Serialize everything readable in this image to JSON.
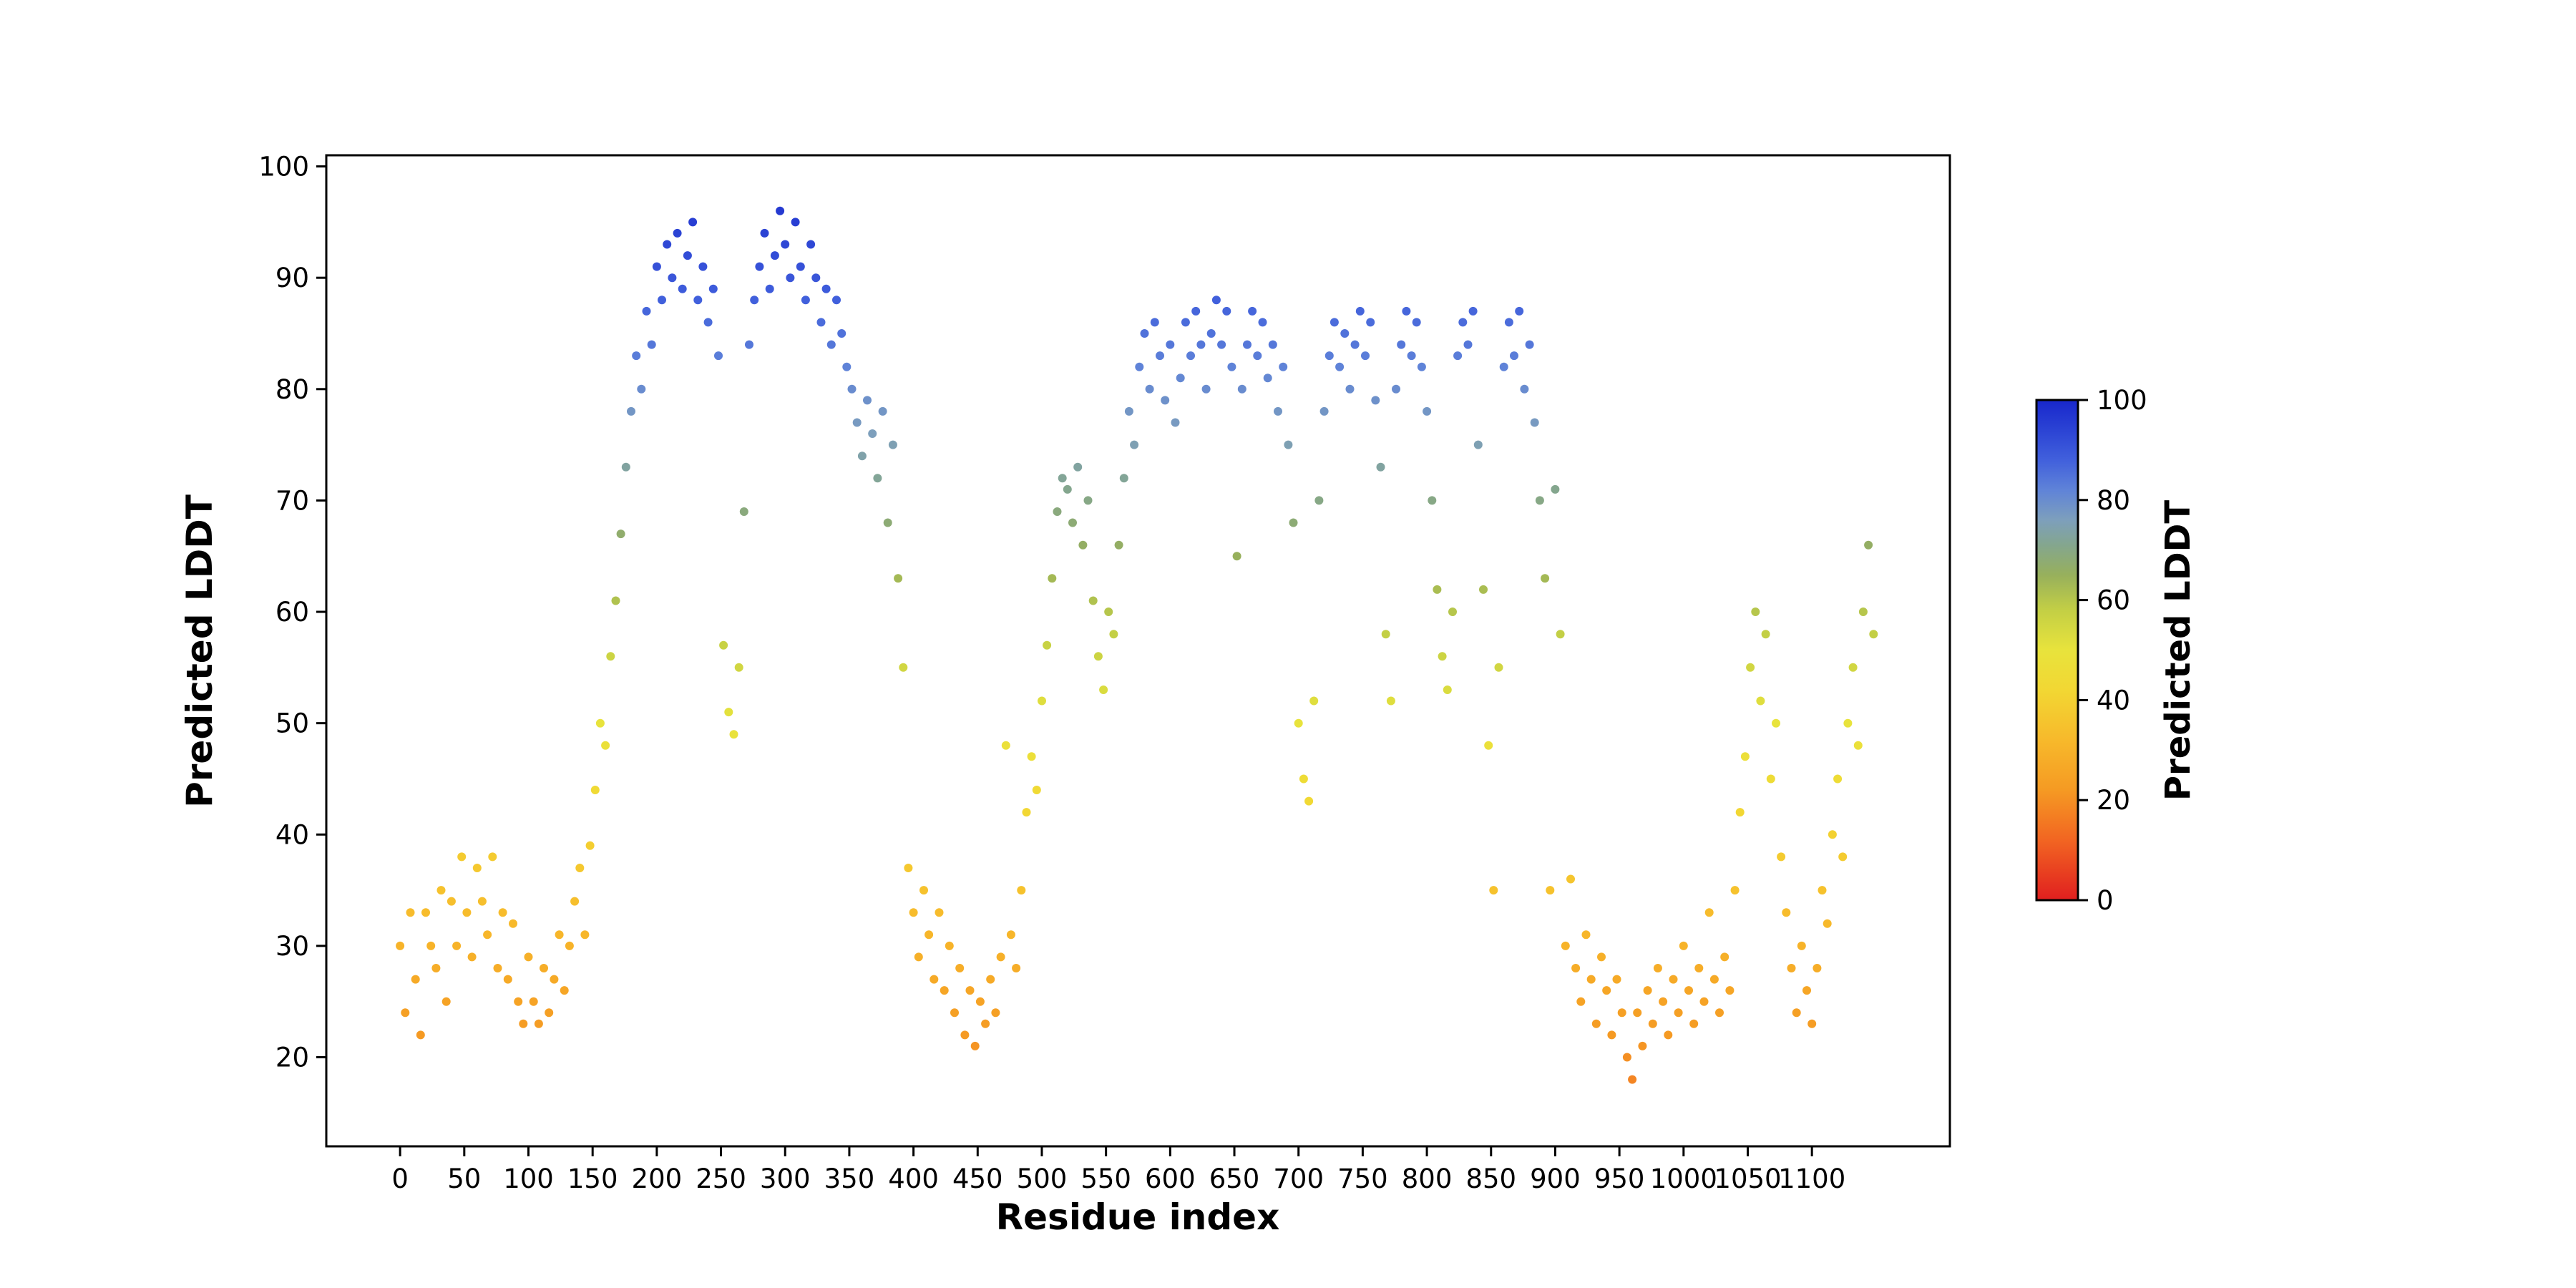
{
  "figure": {
    "background_color": "#ffffff",
    "axis_color": "#000000"
  },
  "chart_data": {
    "type": "scatter",
    "title": "",
    "xlabel": "Residue index",
    "ylabel": "Predicted LDDT",
    "xlim": [
      -57.5,
      1207.5
    ],
    "ylim": [
      12,
      101
    ],
    "grid": false,
    "legend": false,
    "marker_size": 6,
    "x_ticks": [
      0,
      50,
      100,
      150,
      200,
      250,
      300,
      350,
      400,
      450,
      500,
      550,
      600,
      650,
      700,
      750,
      800,
      850,
      900,
      950,
      1000,
      1050,
      1100
    ],
    "y_ticks": [
      20,
      30,
      40,
      50,
      60,
      70,
      80,
      90,
      100
    ],
    "colorbar": {
      "label": "Predicted LDDT",
      "min": 0,
      "max": 100,
      "ticks": [
        0,
        20,
        40,
        60,
        80,
        100
      ]
    },
    "colormap_stops": [
      {
        "t": 0.0,
        "color": "#e01f1f"
      },
      {
        "t": 0.12,
        "color": "#f26522"
      },
      {
        "t": 0.22,
        "color": "#f59a23"
      },
      {
        "t": 0.32,
        "color": "#f7b92b"
      },
      {
        "t": 0.42,
        "color": "#f2d733"
      },
      {
        "t": 0.5,
        "color": "#e8e33c"
      },
      {
        "t": 0.58,
        "color": "#c3cf45"
      },
      {
        "t": 0.65,
        "color": "#97b05c"
      },
      {
        "t": 0.71,
        "color": "#84a68e"
      },
      {
        "t": 0.76,
        "color": "#7d9fbc"
      },
      {
        "t": 0.82,
        "color": "#5f83d8"
      },
      {
        "t": 0.88,
        "color": "#4160dc"
      },
      {
        "t": 0.94,
        "color": "#2b43d4"
      },
      {
        "t": 1.0,
        "color": "#1827cc"
      }
    ],
    "points": [
      [
        0,
        30
      ],
      [
        4,
        24
      ],
      [
        8,
        33
      ],
      [
        12,
        27
      ],
      [
        16,
        22
      ],
      [
        20,
        33
      ],
      [
        24,
        30
      ],
      [
        28,
        28
      ],
      [
        32,
        35
      ],
      [
        36,
        25
      ],
      [
        40,
        34
      ],
      [
        44,
        30
      ],
      [
        48,
        38
      ],
      [
        52,
        33
      ],
      [
        56,
        29
      ],
      [
        60,
        37
      ],
      [
        64,
        34
      ],
      [
        68,
        31
      ],
      [
        72,
        38
      ],
      [
        76,
        28
      ],
      [
        80,
        33
      ],
      [
        84,
        27
      ],
      [
        88,
        32
      ],
      [
        92,
        25
      ],
      [
        96,
        23
      ],
      [
        100,
        29
      ],
      [
        104,
        25
      ],
      [
        108,
        23
      ],
      [
        112,
        28
      ],
      [
        116,
        24
      ],
      [
        120,
        27
      ],
      [
        124,
        31
      ],
      [
        128,
        26
      ],
      [
        132,
        30
      ],
      [
        136,
        34
      ],
      [
        140,
        37
      ],
      [
        144,
        31
      ],
      [
        148,
        39
      ],
      [
        152,
        44
      ],
      [
        156,
        50
      ],
      [
        160,
        48
      ],
      [
        164,
        56
      ],
      [
        168,
        61
      ],
      [
        172,
        67
      ],
      [
        176,
        73
      ],
      [
        180,
        78
      ],
      [
        184,
        83
      ],
      [
        188,
        80
      ],
      [
        192,
        87
      ],
      [
        196,
        84
      ],
      [
        200,
        91
      ],
      [
        204,
        88
      ],
      [
        208,
        93
      ],
      [
        212,
        90
      ],
      [
        216,
        94
      ],
      [
        220,
        89
      ],
      [
        224,
        92
      ],
      [
        228,
        95
      ],
      [
        232,
        88
      ],
      [
        236,
        91
      ],
      [
        240,
        86
      ],
      [
        244,
        89
      ],
      [
        248,
        83
      ],
      [
        252,
        57
      ],
      [
        256,
        51
      ],
      [
        260,
        49
      ],
      [
        264,
        55
      ],
      [
        268,
        69
      ],
      [
        272,
        84
      ],
      [
        276,
        88
      ],
      [
        280,
        91
      ],
      [
        284,
        94
      ],
      [
        288,
        89
      ],
      [
        292,
        92
      ],
      [
        296,
        96
      ],
      [
        300,
        93
      ],
      [
        304,
        90
      ],
      [
        308,
        95
      ],
      [
        312,
        91
      ],
      [
        316,
        88
      ],
      [
        320,
        93
      ],
      [
        324,
        90
      ],
      [
        328,
        86
      ],
      [
        332,
        89
      ],
      [
        336,
        84
      ],
      [
        340,
        88
      ],
      [
        344,
        85
      ],
      [
        348,
        82
      ],
      [
        352,
        80
      ],
      [
        356,
        77
      ],
      [
        360,
        74
      ],
      [
        364,
        79
      ],
      [
        368,
        76
      ],
      [
        372,
        72
      ],
      [
        376,
        78
      ],
      [
        380,
        68
      ],
      [
        384,
        75
      ],
      [
        388,
        63
      ],
      [
        392,
        55
      ],
      [
        396,
        37
      ],
      [
        400,
        33
      ],
      [
        404,
        29
      ],
      [
        408,
        35
      ],
      [
        412,
        31
      ],
      [
        416,
        27
      ],
      [
        420,
        33
      ],
      [
        424,
        26
      ],
      [
        428,
        30
      ],
      [
        432,
        24
      ],
      [
        436,
        28
      ],
      [
        440,
        22
      ],
      [
        444,
        26
      ],
      [
        448,
        21
      ],
      [
        452,
        25
      ],
      [
        456,
        23
      ],
      [
        460,
        27
      ],
      [
        464,
        24
      ],
      [
        468,
        29
      ],
      [
        472,
        48
      ],
      [
        476,
        31
      ],
      [
        480,
        28
      ],
      [
        484,
        35
      ],
      [
        488,
        42
      ],
      [
        492,
        47
      ],
      [
        496,
        44
      ],
      [
        500,
        52
      ],
      [
        504,
        57
      ],
      [
        508,
        63
      ],
      [
        512,
        69
      ],
      [
        516,
        72
      ],
      [
        520,
        71
      ],
      [
        524,
        68
      ],
      [
        528,
        73
      ],
      [
        532,
        66
      ],
      [
        536,
        70
      ],
      [
        540,
        61
      ],
      [
        544,
        56
      ],
      [
        548,
        53
      ],
      [
        552,
        60
      ],
      [
        556,
        58
      ],
      [
        560,
        66
      ],
      [
        564,
        72
      ],
      [
        568,
        78
      ],
      [
        572,
        75
      ],
      [
        576,
        82
      ],
      [
        580,
        85
      ],
      [
        584,
        80
      ],
      [
        588,
        86
      ],
      [
        592,
        83
      ],
      [
        596,
        79
      ],
      [
        600,
        84
      ],
      [
        604,
        77
      ],
      [
        608,
        81
      ],
      [
        612,
        86
      ],
      [
        616,
        83
      ],
      [
        620,
        87
      ],
      [
        624,
        84
      ],
      [
        628,
        80
      ],
      [
        632,
        85
      ],
      [
        636,
        88
      ],
      [
        640,
        84
      ],
      [
        644,
        87
      ],
      [
        648,
        82
      ],
      [
        652,
        65
      ],
      [
        656,
        80
      ],
      [
        660,
        84
      ],
      [
        664,
        87
      ],
      [
        668,
        83
      ],
      [
        672,
        86
      ],
      [
        676,
        81
      ],
      [
        680,
        84
      ],
      [
        684,
        78
      ],
      [
        688,
        82
      ],
      [
        692,
        75
      ],
      [
        696,
        68
      ],
      [
        700,
        50
      ],
      [
        704,
        45
      ],
      [
        708,
        43
      ],
      [
        712,
        52
      ],
      [
        716,
        70
      ],
      [
        720,
        78
      ],
      [
        724,
        83
      ],
      [
        728,
        86
      ],
      [
        732,
        82
      ],
      [
        736,
        85
      ],
      [
        740,
        80
      ],
      [
        744,
        84
      ],
      [
        748,
        87
      ],
      [
        752,
        83
      ],
      [
        756,
        86
      ],
      [
        760,
        79
      ],
      [
        764,
        73
      ],
      [
        768,
        58
      ],
      [
        772,
        52
      ],
      [
        776,
        80
      ],
      [
        780,
        84
      ],
      [
        784,
        87
      ],
      [
        788,
        83
      ],
      [
        792,
        86
      ],
      [
        796,
        82
      ],
      [
        800,
        78
      ],
      [
        804,
        70
      ],
      [
        808,
        62
      ],
      [
        812,
        56
      ],
      [
        816,
        53
      ],
      [
        820,
        60
      ],
      [
        824,
        83
      ],
      [
        828,
        86
      ],
      [
        832,
        84
      ],
      [
        836,
        87
      ],
      [
        840,
        75
      ],
      [
        844,
        62
      ],
      [
        848,
        48
      ],
      [
        852,
        35
      ],
      [
        856,
        55
      ],
      [
        860,
        82
      ],
      [
        864,
        86
      ],
      [
        868,
        83
      ],
      [
        872,
        87
      ],
      [
        876,
        80
      ],
      [
        880,
        84
      ],
      [
        884,
        77
      ],
      [
        888,
        70
      ],
      [
        892,
        63
      ],
      [
        896,
        35
      ],
      [
        900,
        71
      ],
      [
        904,
        58
      ],
      [
        908,
        30
      ],
      [
        912,
        36
      ],
      [
        916,
        28
      ],
      [
        920,
        25
      ],
      [
        924,
        31
      ],
      [
        928,
        27
      ],
      [
        932,
        23
      ],
      [
        936,
        29
      ],
      [
        940,
        26
      ],
      [
        944,
        22
      ],
      [
        948,
        27
      ],
      [
        952,
        24
      ],
      [
        956,
        20
      ],
      [
        960,
        18
      ],
      [
        964,
        24
      ],
      [
        968,
        21
      ],
      [
        972,
        26
      ],
      [
        976,
        23
      ],
      [
        980,
        28
      ],
      [
        984,
        25
      ],
      [
        988,
        22
      ],
      [
        992,
        27
      ],
      [
        996,
        24
      ],
      [
        1000,
        30
      ],
      [
        1004,
        26
      ],
      [
        1008,
        23
      ],
      [
        1012,
        28
      ],
      [
        1016,
        25
      ],
      [
        1020,
        33
      ],
      [
        1024,
        27
      ],
      [
        1028,
        24
      ],
      [
        1032,
        29
      ],
      [
        1036,
        26
      ],
      [
        1040,
        35
      ],
      [
        1044,
        42
      ],
      [
        1048,
        47
      ],
      [
        1052,
        55
      ],
      [
        1056,
        60
      ],
      [
        1060,
        52
      ],
      [
        1064,
        58
      ],
      [
        1068,
        45
      ],
      [
        1072,
        50
      ],
      [
        1076,
        38
      ],
      [
        1080,
        33
      ],
      [
        1084,
        28
      ],
      [
        1088,
        24
      ],
      [
        1092,
        30
      ],
      [
        1096,
        26
      ],
      [
        1100,
        23
      ],
      [
        1104,
        28
      ],
      [
        1108,
        35
      ],
      [
        1112,
        32
      ],
      [
        1116,
        40
      ],
      [
        1120,
        45
      ],
      [
        1124,
        38
      ],
      [
        1128,
        50
      ],
      [
        1132,
        55
      ],
      [
        1136,
        48
      ],
      [
        1140,
        60
      ],
      [
        1144,
        66
      ],
      [
        1148,
        58
      ]
    ]
  }
}
